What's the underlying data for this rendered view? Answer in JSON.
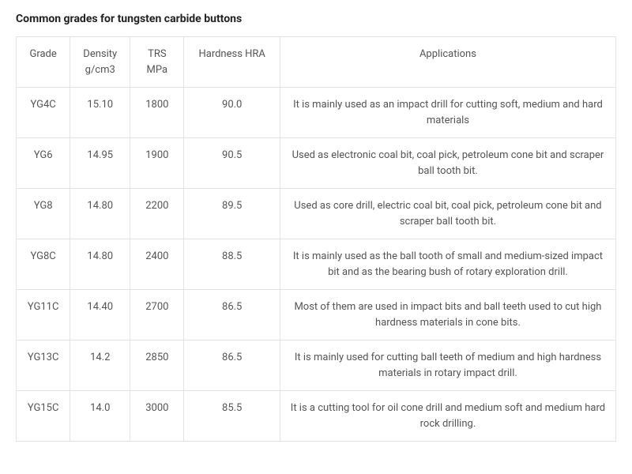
{
  "title": "Common grades for tungsten carbide buttons",
  "colors": {
    "text": "#555555",
    "title": "#222222",
    "border": "#e3e3e3",
    "background": "#ffffff"
  },
  "typography": {
    "title_fontsize_pt": 11,
    "body_fontsize_pt": 10,
    "title_weight": 700,
    "body_weight": 400
  },
  "table": {
    "type": "table",
    "columns": [
      {
        "key": "grade",
        "label": "Grade",
        "width_pct": 9,
        "align": "center"
      },
      {
        "key": "density",
        "label": "Density g/cm3",
        "width_pct": 10,
        "align": "center"
      },
      {
        "key": "trs",
        "label": "TRS MPa",
        "width_pct": 9,
        "align": "center"
      },
      {
        "key": "hardness",
        "label": "Hardness HRA",
        "width_pct": 16,
        "align": "center"
      },
      {
        "key": "applications",
        "label": "Applications",
        "width_pct": 56,
        "align": "center"
      }
    ],
    "rows": [
      {
        "grade": "YG4C",
        "density": "15.10",
        "trs": "1800",
        "hardness": "90.0",
        "applications": "It is mainly used as an impact drill for cutting soft, medium and hard materials"
      },
      {
        "grade": "YG6",
        "density": "14.95",
        "trs": "1900",
        "hardness": "90.5",
        "applications": "Used as electronic coal bit, coal pick, petroleum cone bit and scraper ball tooth bit."
      },
      {
        "grade": "YG8",
        "density": "14.80",
        "trs": "2200",
        "hardness": "89.5",
        "applications": "Used as core drill, electric coal bit, coal pick, petroleum cone bit and scraper ball tooth bit."
      },
      {
        "grade": "YG8C",
        "density": "14.80",
        "trs": "2400",
        "hardness": "88.5",
        "applications": "It is mainly used as the ball tooth of small and medium-sized impact bit and as the bearing bush of rotary exploration drill."
      },
      {
        "grade": "YG11C",
        "density": "14.40",
        "trs": "2700",
        "hardness": "86.5",
        "applications": "Most of them are used in impact bits and ball teeth used to cut high hardness materials in cone bits."
      },
      {
        "grade": "YG13C",
        "density": "14.2",
        "trs": "2850",
        "hardness": "86.5",
        "applications": "It is mainly used for cutting ball teeth of medium and high hardness materials in rotary impact drill."
      },
      {
        "grade": "YG15C",
        "density": "14.0",
        "trs": "3000",
        "hardness": "85.5",
        "applications": "It is a cutting tool for oil cone drill and medium soft and medium hard rock drilling."
      }
    ]
  }
}
